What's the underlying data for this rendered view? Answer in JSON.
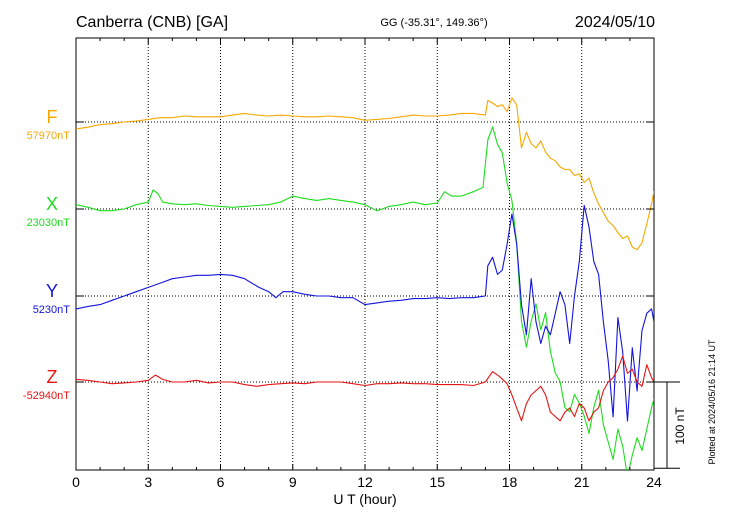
{
  "chart_data": {
    "type": "line",
    "title": "Canberra (CNB)  [GA]",
    "subtitle": "GG (-35.31°, 149.36°)",
    "date": "2024/05/10",
    "xlabel": "U T (hour)",
    "xlim": [
      0,
      24
    ],
    "xticks": [
      0,
      3,
      6,
      9,
      12,
      15,
      18,
      21,
      24
    ],
    "grid": true,
    "scale_bar_label": "100 nT",
    "scale_bar_nT": 100,
    "plotted_note": "Plotted at 2024/05/16 21:14 UT",
    "series": [
      {
        "name": "F",
        "baseline_label": "57970nT",
        "baseline_nT": 57970,
        "color": "#f5a800",
        "x": [
          0,
          0.5,
          1,
          1.5,
          2,
          2.5,
          3,
          3.5,
          4,
          4.5,
          5,
          5.5,
          6,
          6.5,
          7,
          7.5,
          8,
          8.5,
          9,
          9.5,
          10,
          10.5,
          11,
          11.5,
          12,
          12.5,
          13,
          13.5,
          14,
          14.5,
          15,
          15.5,
          16,
          16.5,
          17,
          17.1,
          17.3,
          17.5,
          17.7,
          17.9,
          18.1,
          18.3,
          18.5,
          18.7,
          18.9,
          19.1,
          19.3,
          19.5,
          19.7,
          19.9,
          20.1,
          20.3,
          20.5,
          20.7,
          20.9,
          21.1,
          21.3,
          21.5,
          21.7,
          21.9,
          22.1,
          22.3,
          22.5,
          22.7,
          22.9,
          23.1,
          23.3,
          23.5,
          23.7,
          23.9,
          24
        ],
        "y": [
          -8,
          -6,
          -3,
          -2,
          0,
          1,
          3,
          5,
          5,
          7,
          6,
          6,
          6,
          8,
          10,
          8,
          7,
          8,
          7,
          6,
          6,
          7,
          6,
          5,
          2,
          3,
          4,
          6,
          8,
          7,
          7,
          8,
          10,
          10,
          8,
          25,
          22,
          18,
          20,
          12,
          28,
          20,
          -30,
          -12,
          -25,
          -30,
          -22,
          -35,
          -42,
          -45,
          -52,
          -55,
          -55,
          -62,
          -60,
          -70,
          -65,
          -82,
          -95,
          -105,
          -115,
          -120,
          -128,
          -135,
          -132,
          -145,
          -148,
          -140,
          -118,
          -95,
          -80
        ]
      },
      {
        "name": "X",
        "baseline_label": "23030nT",
        "baseline_nT": 23030,
        "color": "#1edc1e",
        "x": [
          0,
          0.5,
          1,
          1.5,
          2,
          2.5,
          3,
          3.2,
          3.4,
          3.6,
          4,
          4.5,
          5,
          5.5,
          6,
          6.5,
          7,
          7.5,
          8,
          8.5,
          9,
          9.5,
          10,
          10.5,
          11,
          11.5,
          12,
          12.5,
          13,
          13.5,
          14,
          14.5,
          15,
          15.3,
          15.6,
          16,
          16.5,
          16.9,
          17.1,
          17.3,
          17.5,
          17.7,
          17.9,
          18.1,
          18.3,
          18.5,
          18.7,
          18.9,
          19.1,
          19.3,
          19.5,
          19.7,
          19.9,
          20.1,
          20.3,
          20.5,
          20.7,
          20.9,
          21.1,
          21.3,
          21.5,
          21.7,
          21.9,
          22.1,
          22.3,
          22.5,
          22.7,
          22.9,
          23.1,
          23.3,
          23.5,
          23.7,
          23.9,
          24
        ],
        "y": [
          5,
          2,
          -2,
          -2,
          0,
          5,
          8,
          22,
          18,
          8,
          6,
          5,
          6,
          4,
          3,
          2,
          3,
          4,
          5,
          8,
          15,
          12,
          10,
          12,
          10,
          8,
          5,
          -2,
          3,
          5,
          8,
          5,
          7,
          20,
          15,
          15,
          20,
          25,
          80,
          95,
          75,
          65,
          30,
          10,
          -40,
          -130,
          -160,
          -130,
          -110,
          -140,
          -120,
          -165,
          -190,
          -200,
          -230,
          -235,
          -215,
          -225,
          -240,
          -260,
          -230,
          -210,
          -250,
          -270,
          -290,
          -255,
          -275,
          -310,
          -285,
          -265,
          -280,
          -255,
          -230,
          -220
        ]
      },
      {
        "name": "Y",
        "baseline_label": "5230nT",
        "baseline_nT": 5230,
        "color": "#1414dc",
        "x": [
          0,
          0.5,
          1,
          1.5,
          2,
          2.5,
          3,
          3.5,
          4,
          4.5,
          5,
          5.5,
          6,
          6.5,
          7,
          7.3,
          7.6,
          8,
          8.3,
          8.6,
          9,
          9.5,
          10,
          10.5,
          11,
          11.5,
          12,
          12.5,
          13,
          13.5,
          14,
          14.5,
          15,
          15.5,
          16,
          16.5,
          17,
          17.1,
          17.3,
          17.5,
          17.7,
          17.9,
          18.1,
          18.3,
          18.5,
          18.7,
          18.9,
          19.1,
          19.3,
          19.5,
          19.7,
          19.9,
          20.1,
          20.3,
          20.5,
          20.7,
          20.9,
          21.1,
          21.3,
          21.5,
          21.7,
          21.9,
          22.1,
          22.3,
          22.5,
          22.7,
          22.9,
          23.1,
          23.3,
          23.5,
          23.7,
          23.9,
          24
        ],
        "y": [
          -15,
          -12,
          -10,
          -5,
          0,
          5,
          10,
          15,
          20,
          22,
          24,
          24,
          25,
          24,
          20,
          15,
          10,
          5,
          -2,
          5,
          5,
          2,
          0,
          0,
          -2,
          -2,
          -10,
          -8,
          -6,
          -5,
          -3,
          -3,
          -2,
          -3,
          -2,
          -2,
          0,
          35,
          45,
          25,
          30,
          60,
          95,
          60,
          -10,
          -45,
          20,
          -30,
          -55,
          -35,
          -45,
          -20,
          5,
          -10,
          -55,
          0,
          40,
          105,
          80,
          40,
          25,
          -30,
          -75,
          -140,
          -25,
          -65,
          -145,
          -60,
          -110,
          -40,
          -20,
          -15,
          -30
        ]
      },
      {
        "name": "Z",
        "baseline_label": "-52940nT",
        "baseline_nT": -52940,
        "color": "#e61414",
        "x": [
          0,
          0.5,
          1,
          1.5,
          2,
          2.5,
          3,
          3.3,
          3.6,
          4,
          4.5,
          5,
          5.5,
          6,
          6.5,
          7,
          7.5,
          8,
          8.5,
          9,
          9.5,
          10,
          10.5,
          11,
          11.5,
          12,
          12.5,
          13,
          13.5,
          14,
          14.5,
          15,
          15.5,
          16,
          16.5,
          17,
          17.3,
          17.6,
          17.9,
          18.1,
          18.3,
          18.5,
          18.7,
          18.9,
          19.1,
          19.3,
          19.5,
          19.7,
          19.9,
          20.1,
          20.3,
          20.5,
          20.7,
          20.9,
          21.1,
          21.3,
          21.5,
          21.7,
          21.9,
          22.1,
          22.3,
          22.5,
          22.7,
          22.9,
          23.1,
          23.3,
          23.5,
          23.7,
          23.9,
          24
        ],
        "y": [
          3,
          2,
          0,
          -2,
          -1,
          0,
          2,
          8,
          3,
          0,
          0,
          2,
          -1,
          0,
          0,
          -3,
          -5,
          -3,
          -2,
          -1,
          -2,
          0,
          0,
          0,
          -2,
          -4,
          -2,
          -2,
          -1,
          -2,
          -2,
          -3,
          -3,
          -3,
          -4,
          0,
          12,
          6,
          -2,
          -15,
          -30,
          -45,
          -25,
          -15,
          -10,
          -5,
          -15,
          -35,
          -40,
          -45,
          -35,
          -30,
          -40,
          -25,
          -30,
          -45,
          -35,
          -30,
          -10,
          0,
          5,
          15,
          30,
          10,
          15,
          0,
          -5,
          20,
          5,
          0
        ]
      }
    ]
  }
}
